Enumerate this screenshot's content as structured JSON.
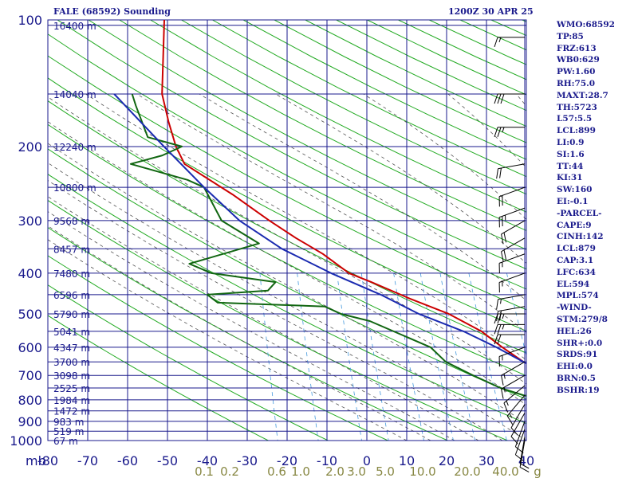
{
  "header": {
    "station": "FALE (68592) Sounding",
    "time": "1200Z 30 APR 25"
  },
  "indices": [
    "WMO:68592",
    "TP:85",
    "FRZ:613",
    "WB0:629",
    "PW:1.60",
    "RH:75.0",
    "MAXT:28.7",
    "TH:5723",
    "L57:5.5",
    "LCL:899",
    "LI:0.9",
    "SI:1.6",
    "TT:44",
    "KI:31",
    "SW:160",
    "EI:-0.1",
    "-PARCEL-",
    "CAPE:9",
    "CINH:142",
    "LCL:879",
    "CAP:3.1",
    "LFC:634",
    "EL:594",
    "MPL:574",
    "-WIND-",
    "STM:279/8",
    "HEL:26",
    "SHR+:0.0",
    "SRDS:91",
    "EHI:0.0",
    "BRN:0.5",
    "BSHR:19"
  ],
  "colors": {
    "grid": "#1a1a8c",
    "dry_adiabat": "#22aa22",
    "moist_adiabat": "#555555",
    "mixing_ratio": "#4499dd",
    "temperature": "#cc0000",
    "dewpoint": "#116611",
    "parcel": "#1a2ab0",
    "wind": "#000000",
    "label": "#1a1a8c"
  },
  "chart_data": {
    "type": "line",
    "title": "FALE (68592) Sounding 1200Z 30 APR 25",
    "y_unit": "mb",
    "y_scale": "log",
    "ylim": [
      1000,
      100
    ],
    "xlim": [
      -80,
      0
    ],
    "x_ticks": [
      -80,
      -70,
      -60,
      -50,
      -40,
      -30,
      -20,
      -10,
      0,
      10,
      20,
      30,
      40
    ],
    "x_tick_labels": [
      "-80",
      "-70",
      "-60",
      "-50",
      "-40",
      "-30",
      "-20",
      "-10",
      "0",
      "10",
      "20",
      "30",
      "40"
    ],
    "pressure_ticks": [
      100,
      200,
      300,
      400,
      500,
      600,
      700,
      800,
      900,
      1000
    ],
    "height_levels": [
      {
        "p": 103,
        "label": "16400 m"
      },
      {
        "p": 150,
        "label": "14040 m"
      },
      {
        "p": 200,
        "label": "12240 m"
      },
      {
        "p": 250,
        "label": "10800 m"
      },
      {
        "p": 300,
        "label": "9568 m"
      },
      {
        "p": 350,
        "label": "8457 m"
      },
      {
        "p": 400,
        "label": "7480 m"
      },
      {
        "p": 450,
        "label": "6596 m"
      },
      {
        "p": 500,
        "label": "5790 m"
      },
      {
        "p": 550,
        "label": "5041 m"
      },
      {
        "p": 600,
        "label": "4347 m"
      },
      {
        "p": 650,
        "label": "3700 m"
      },
      {
        "p": 700,
        "label": "3098 m"
      },
      {
        "p": 750,
        "label": "2525 m"
      },
      {
        "p": 800,
        "label": "1984 m"
      },
      {
        "p": 850,
        "label": "1472 m"
      },
      {
        "p": 900,
        "label": "983 m"
      },
      {
        "p": 950,
        "label": "519 m"
      },
      {
        "p": 1000,
        "label": "67 m"
      }
    ],
    "mixing_ratio_labels": [
      "0.1",
      "0.2",
      "0.6",
      "1.0",
      "2.0",
      "3.0",
      "5.0",
      "10.0",
      "20.0",
      "40.0"
    ],
    "mixing_ratio_unit": "g/kg",
    "series": [
      {
        "key": "temperature",
        "points": [
          [
            100,
            -74
          ],
          [
            150,
            -72
          ],
          [
            175,
            -70
          ],
          [
            200,
            -68
          ],
          [
            220,
            -66
          ],
          [
            260,
            -57
          ],
          [
            300,
            -50
          ],
          [
            330,
            -45
          ],
          [
            360,
            -40
          ],
          [
            400,
            -35
          ],
          [
            420,
            -31
          ],
          [
            460,
            -24
          ],
          [
            500,
            -17
          ],
          [
            550,
            -11
          ],
          [
            600,
            -7
          ],
          [
            650,
            -3
          ],
          [
            700,
            2
          ],
          [
            750,
            8
          ],
          [
            770,
            11
          ],
          [
            800,
            12
          ],
          [
            850,
            16
          ],
          [
            900,
            19
          ],
          [
            950,
            23
          ],
          [
            1000,
            27
          ]
        ]
      },
      {
        "key": "dewpoint",
        "points": [
          [
            150,
            -77
          ],
          [
            160,
            -76
          ],
          [
            190,
            -73
          ],
          [
            200,
            -67
          ],
          [
            210,
            -70
          ],
          [
            220,
            -75
          ],
          [
            240,
            -65
          ],
          [
            250,
            -62
          ],
          [
            300,
            -58
          ],
          [
            340,
            -51
          ],
          [
            380,
            -62
          ],
          [
            400,
            -58
          ],
          [
            420,
            -47
          ],
          [
            440,
            -48
          ],
          [
            450,
            -58
          ],
          [
            470,
            -56
          ],
          [
            480,
            -38
          ],
          [
            500,
            -35
          ],
          [
            520,
            -30
          ],
          [
            600,
            -19
          ],
          [
            650,
            -16
          ],
          [
            700,
            -11
          ],
          [
            750,
            -6
          ],
          [
            780,
            -2
          ],
          [
            800,
            2
          ],
          [
            850,
            3
          ],
          [
            900,
            8
          ],
          [
            950,
            11
          ],
          [
            1000,
            15
          ]
        ]
      },
      {
        "key": "parcel",
        "points": [
          [
            150,
            -80
          ],
          [
            200,
            -70
          ],
          [
            250,
            -62
          ],
          [
            300,
            -55
          ],
          [
            350,
            -47
          ],
          [
            400,
            -38
          ],
          [
            450,
            -29
          ],
          [
            500,
            -22
          ],
          [
            550,
            -14
          ],
          [
            600,
            -8
          ],
          [
            650,
            -3
          ],
          [
            700,
            2
          ],
          [
            750,
            7
          ],
          [
            800,
            11
          ],
          [
            850,
            15
          ],
          [
            900,
            19
          ],
          [
            950,
            23
          ],
          [
            1000,
            27
          ]
        ]
      }
    ],
    "wind_barbs": [
      {
        "p": 110,
        "dir": 270,
        "spd": 15
      },
      {
        "p": 150,
        "dir": 270,
        "spd": 30
      },
      {
        "p": 180,
        "dir": 270,
        "spd": 25
      },
      {
        "p": 220,
        "dir": 260,
        "spd": 20
      },
      {
        "p": 250,
        "dir": 250,
        "spd": 20
      },
      {
        "p": 280,
        "dir": 250,
        "spd": 25
      },
      {
        "p": 300,
        "dir": 240,
        "spd": 20
      },
      {
        "p": 330,
        "dir": 240,
        "spd": 20
      },
      {
        "p": 360,
        "dir": 250,
        "spd": 15
      },
      {
        "p": 400,
        "dir": 250,
        "spd": 15
      },
      {
        "p": 450,
        "dir": 260,
        "spd": 15
      },
      {
        "p": 480,
        "dir": 260,
        "spd": 20
      },
      {
        "p": 500,
        "dir": 270,
        "spd": 25
      },
      {
        "p": 530,
        "dir": 270,
        "spd": 25
      },
      {
        "p": 560,
        "dir": 270,
        "spd": 20
      },
      {
        "p": 600,
        "dir": 250,
        "spd": 15
      },
      {
        "p": 650,
        "dir": 240,
        "spd": 15
      },
      {
        "p": 700,
        "dir": 240,
        "spd": 15
      },
      {
        "p": 740,
        "dir": 230,
        "spd": 15
      },
      {
        "p": 780,
        "dir": 220,
        "spd": 15
      },
      {
        "p": 820,
        "dir": 210,
        "spd": 10
      },
      {
        "p": 860,
        "dir": 210,
        "spd": 10
      },
      {
        "p": 900,
        "dir": 200,
        "spd": 10
      },
      {
        "p": 940,
        "dir": 200,
        "spd": 10
      },
      {
        "p": 980,
        "dir": 190,
        "spd": 10
      },
      {
        "p": 1000,
        "dir": 190,
        "spd": 10
      }
    ]
  }
}
